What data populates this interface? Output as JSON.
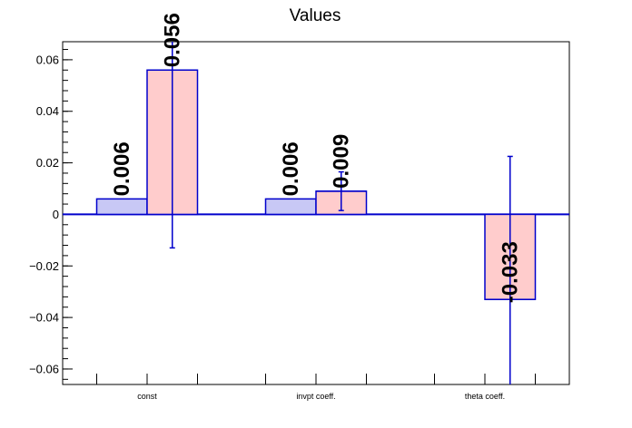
{
  "chart_data": {
    "type": "bar",
    "title": "Values",
    "xlabel": "",
    "ylabel": "",
    "categories": [
      "const",
      "invpt coeff.",
      "theta coeff."
    ],
    "ylim": [
      -0.066,
      0.067
    ],
    "yticks": [
      0.06,
      0.04,
      0.02,
      0,
      -0.02,
      -0.04,
      -0.06
    ],
    "ytick_labels": [
      "0.06",
      "0.04",
      "0.02",
      "0",
      "−0.02",
      "−0.04",
      "−0.06"
    ],
    "grid": false,
    "series": [
      {
        "color": "#c8c8f5",
        "values": [
          0.006,
          0.006,
          null
        ],
        "errors": [
          null,
          null,
          null
        ],
        "labels": [
          "0.006",
          "0.006",
          ""
        ]
      },
      {
        "color": "#ffcccc",
        "values": [
          0.056,
          0.009,
          -0.033
        ],
        "errors": [
          0.069,
          0.0075,
          0.0555
        ],
        "labels": [
          "0.056",
          "0.009",
          "-0.033"
        ]
      }
    ],
    "edge_color": "#0000cc"
  }
}
